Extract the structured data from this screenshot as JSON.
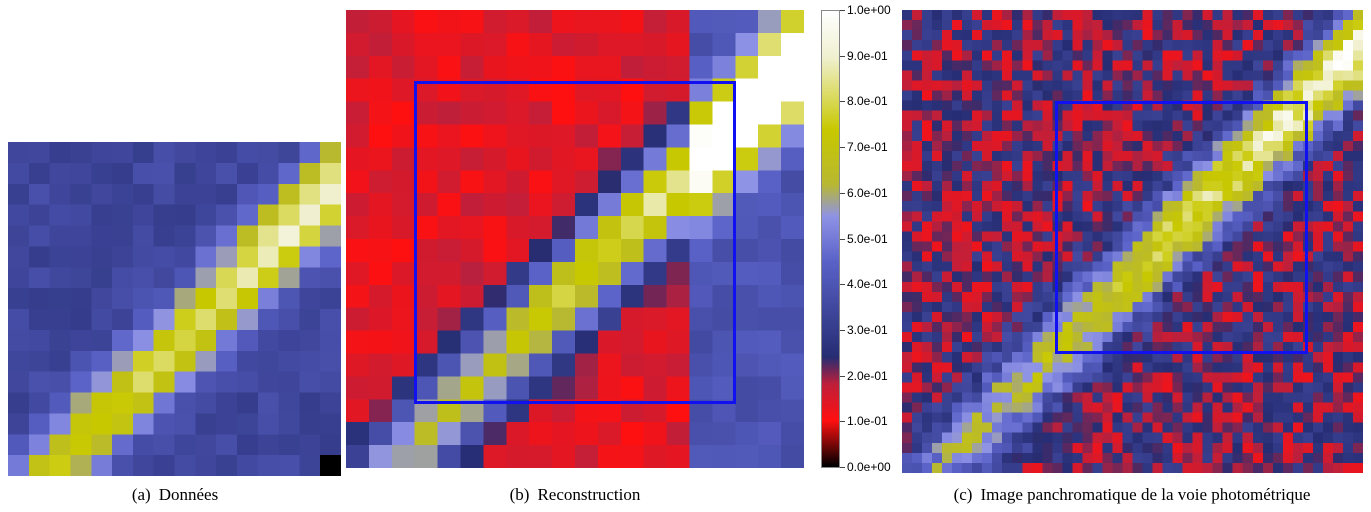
{
  "figures": [
    {
      "id": "a",
      "label": "(a)",
      "caption": "Données"
    },
    {
      "id": "b",
      "label": "(b)",
      "caption": "Reconstruction"
    },
    {
      "id": "c",
      "label": "(c)",
      "caption": "Image panchromatique de la voie photométrique"
    }
  ],
  "colorbar": {
    "ticks": [
      "1.0e+00",
      "9.0e-01",
      "8.0e-01",
      "7.0e-01",
      "6.0e-01",
      "5.0e-01",
      "4.0e-01",
      "3.0e-01",
      "2.0e-01",
      "1.0e-01",
      "0.0e+00"
    ],
    "min": 0.0,
    "max": 1.0,
    "colormap": [
      "#000000",
      "#ff1010",
      "#c01f3a",
      "#262d73",
      "#5a62c8",
      "#8f93e6",
      "#b8b832",
      "#c8c800",
      "#f0f0d0",
      "#ffffff"
    ]
  },
  "colors": {
    "box": "#1010f0"
  }
}
